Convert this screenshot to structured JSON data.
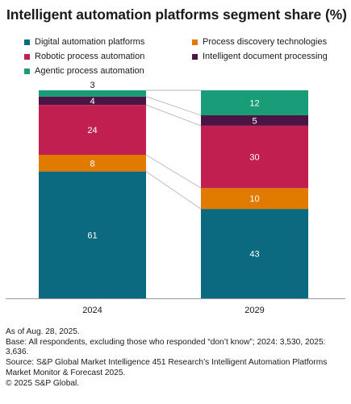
{
  "title": "Intelligent automation platforms segment share (%)",
  "chart_data": {
    "type": "bar",
    "stacked": true,
    "categories": [
      "2024",
      "2029"
    ],
    "series": [
      {
        "name": "Digital automation platforms",
        "color": "#0b6980",
        "values": [
          61,
          43
        ]
      },
      {
        "name": "Process discovery technologies",
        "color": "#e07b00",
        "values": [
          8,
          10
        ]
      },
      {
        "name": "Robotic process automation",
        "color": "#c01f4f",
        "values": [
          24,
          30
        ]
      },
      {
        "name": "Intelligent document processing",
        "color": "#4a1545",
        "values": [
          4,
          5
        ]
      },
      {
        "name": "Agentic process automation",
        "color": "#199c78",
        "values": [
          3,
          12
        ]
      }
    ],
    "legend_order": [
      0,
      1,
      2,
      3,
      4
    ],
    "ylim": [
      0,
      100
    ],
    "grid": false,
    "legend": "top"
  },
  "footnotes": [
    "As of Aug. 28, 2025.",
    "Base: All respondents, excluding those who responded “don’t know”; 2024: 3,530, 2025: 3,636.",
    "Source: S&P Global Market Intelligence  451 Research’s Intelligent Automation Platforms Market Monitor & Forecast 2025.",
    "© 2025 S&P Global."
  ]
}
